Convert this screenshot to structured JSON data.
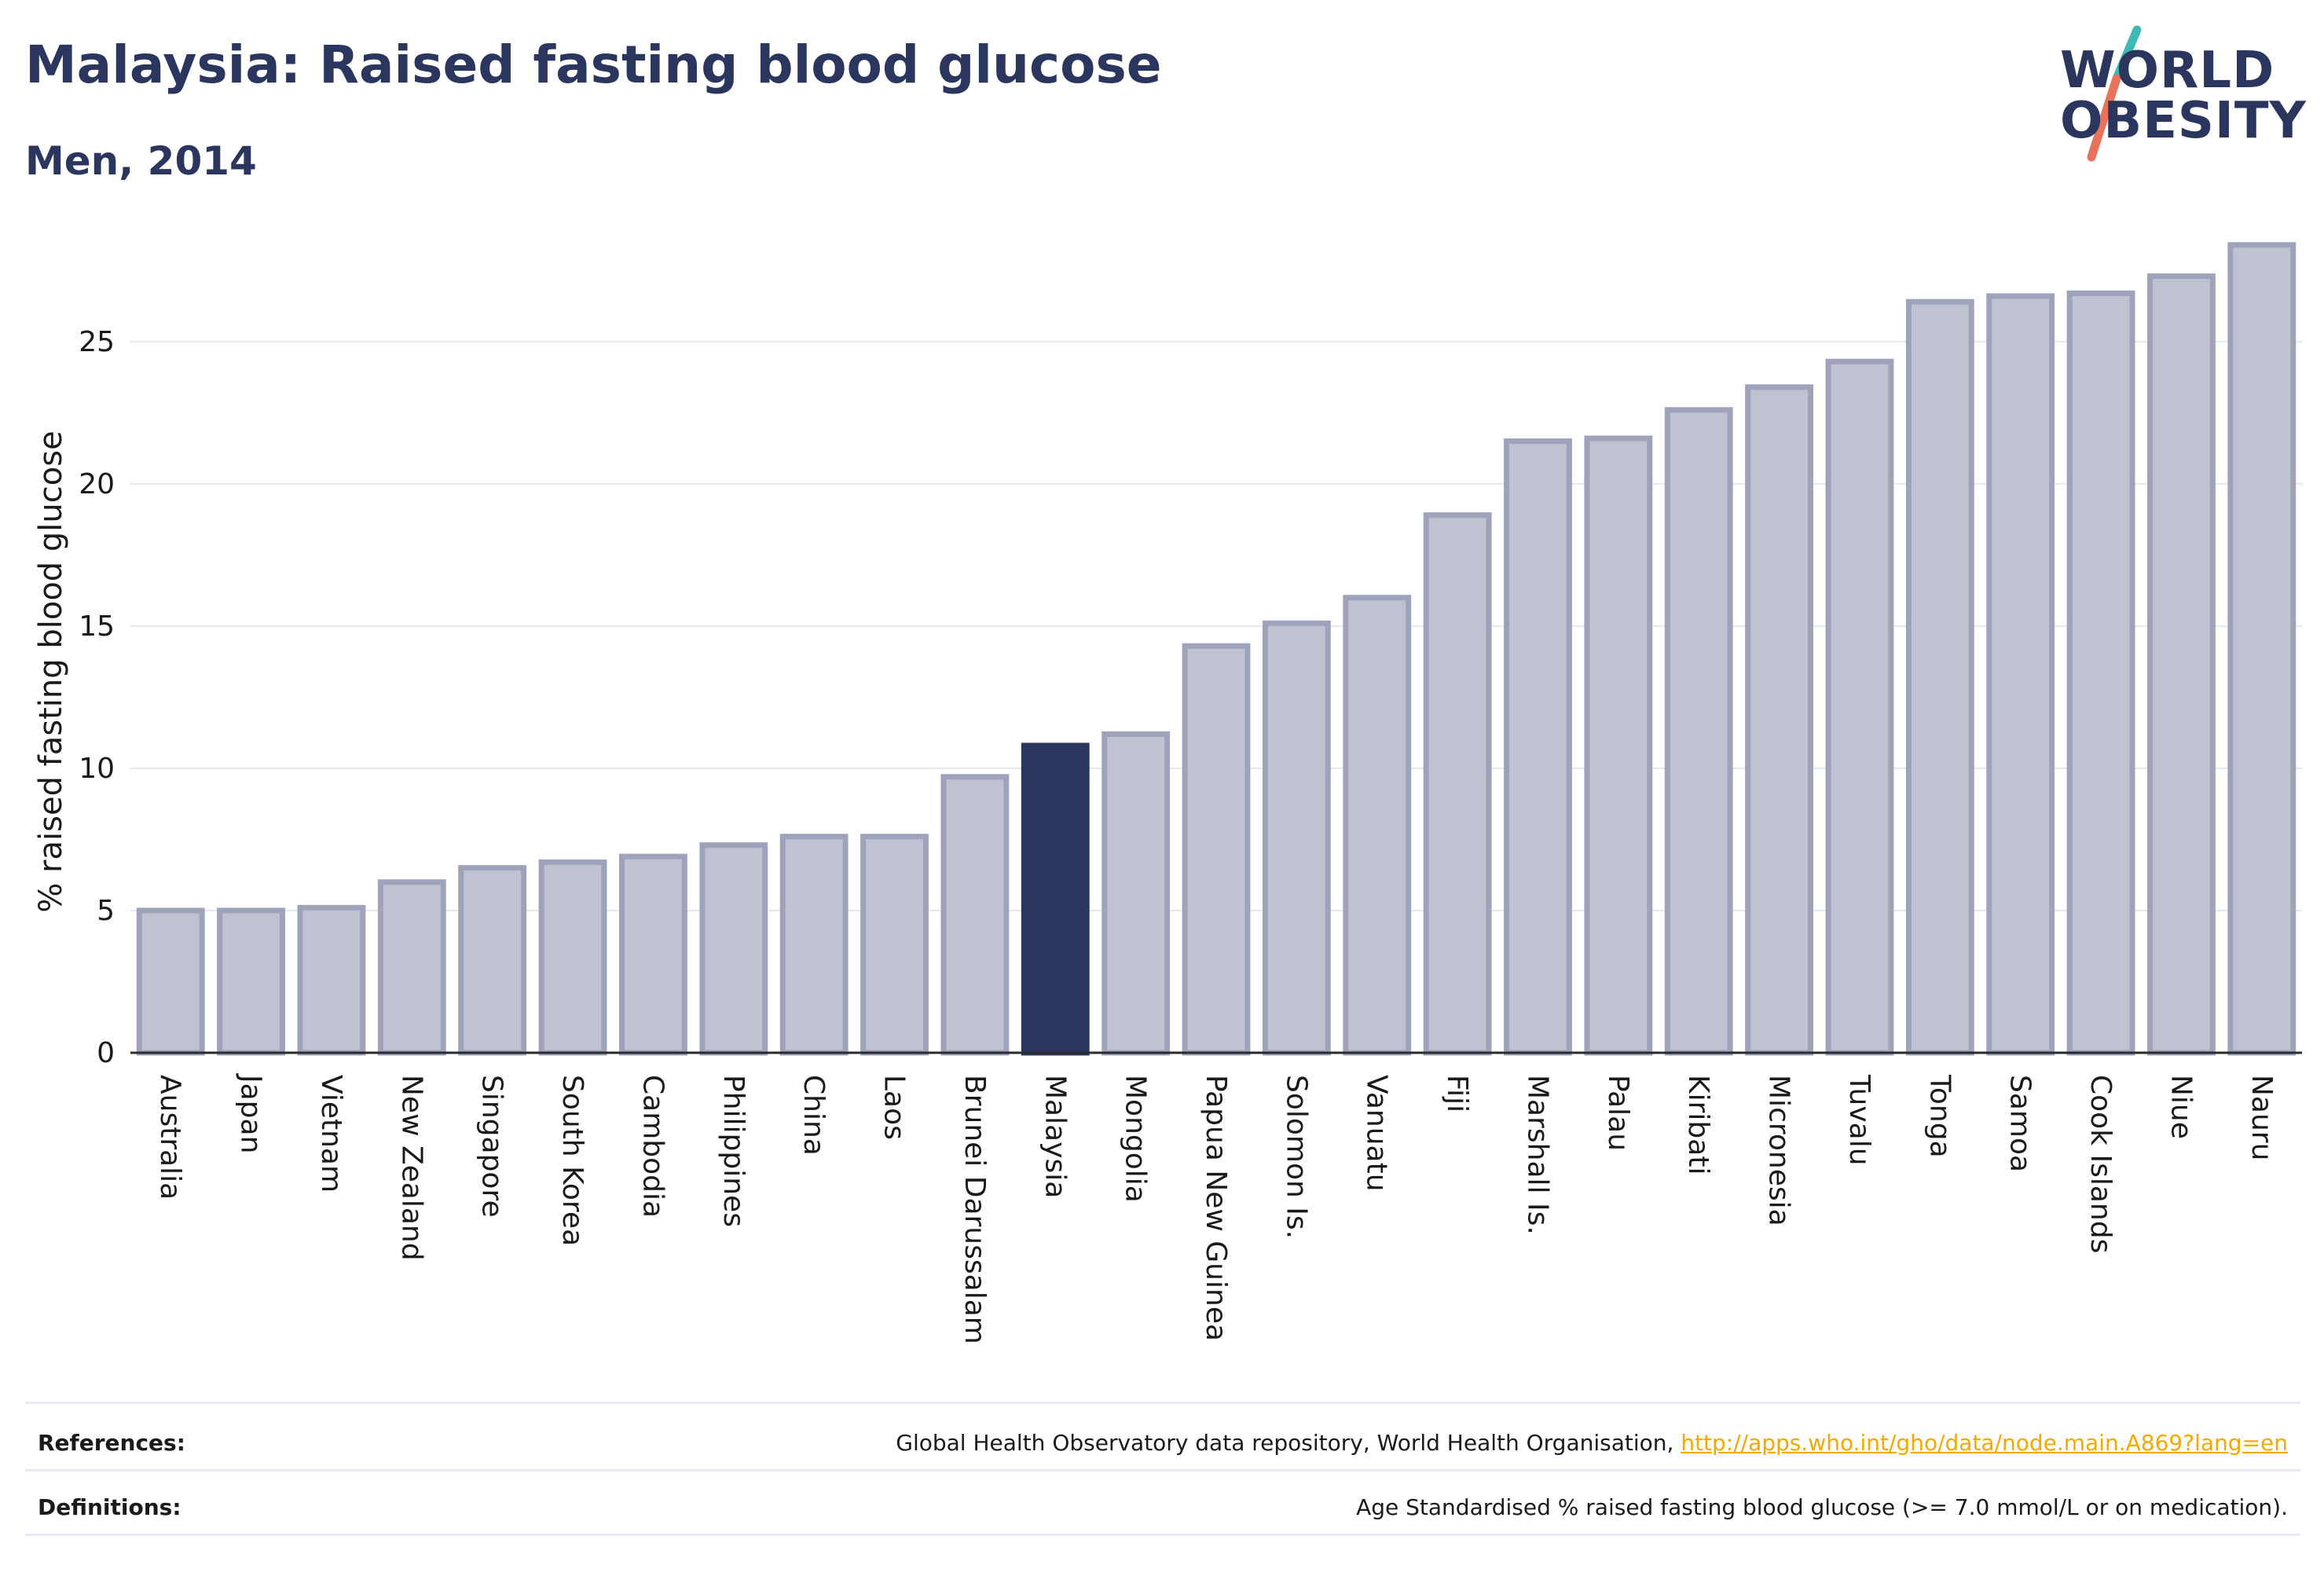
{
  "header": {
    "title": "Malaysia: Raised fasting blood glucose",
    "subtitle": "Men, 2014"
  },
  "logo": {
    "line1": "WORLD",
    "line2": "OBESITY",
    "slash_colors": [
      "#3cbab3",
      "#e8735a"
    ]
  },
  "colors": {
    "bar_fill": "#bfc2d0",
    "bar_stroke": "#9ea3bb",
    "highlight": "#2b365f",
    "gridline": "#e6e8ef",
    "axis": "#2b2b2b",
    "link": "#f5a800"
  },
  "chart_data": {
    "type": "bar",
    "title": "Malaysia: Raised fasting blood glucose",
    "subtitle": "Men, 2014",
    "xlabel": "",
    "ylabel": "% raised fasting blood glucose",
    "ylim": [
      0,
      29
    ],
    "yticks": [
      0,
      5,
      10,
      15,
      20,
      25
    ],
    "grid": true,
    "highlight_category": "Malaysia",
    "categories": [
      "Australia",
      "Japan",
      "Vietnam",
      "New Zealand",
      "Singapore",
      "South Korea",
      "Cambodia",
      "Philippines",
      "China",
      "Laos",
      "Brunei Darussalam",
      "Malaysia",
      "Mongolia",
      "Papua New Guinea",
      "Solomon Is.",
      "Vanuatu",
      "Fiji",
      "Marshall Is.",
      "Palau",
      "Kiribati",
      "Micronesia",
      "Tuvalu",
      "Tonga",
      "Samoa",
      "Cook Islands",
      "Niue",
      "Nauru"
    ],
    "values": [
      5.0,
      5.0,
      5.1,
      6.0,
      6.5,
      6.7,
      6.9,
      7.3,
      7.6,
      7.6,
      9.7,
      10.8,
      11.2,
      14.3,
      15.1,
      16.0,
      18.9,
      21.5,
      21.6,
      22.6,
      23.4,
      24.3,
      26.4,
      26.6,
      26.7,
      27.3,
      28.4
    ]
  },
  "footer": {
    "references_label": "References:",
    "references_text": "Global Health Observatory data repository, World Health Organisation, ",
    "references_link": "http://apps.who.int/gho/data/node.main.A869?lang=en",
    "definitions_label": "Definitions:",
    "definitions_text": "Age Standardised % raised fasting blood glucose (>= 7.0 mmol/L or on medication)."
  }
}
